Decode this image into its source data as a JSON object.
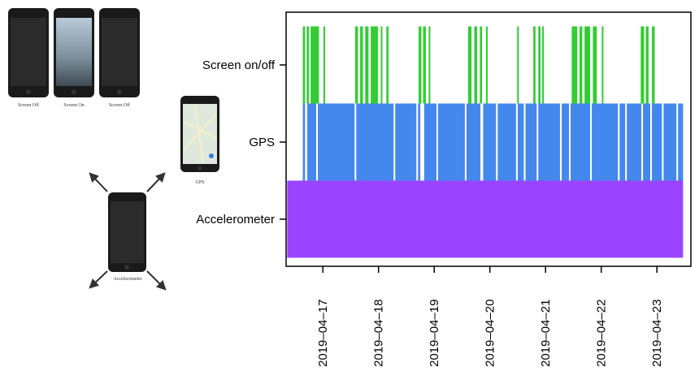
{
  "illustration": {
    "screen_captions": [
      "Screen Off",
      "Screen On",
      "Screen Off"
    ],
    "gps_caption": "GPS",
    "accelerometer_caption": "Accelerometer"
  },
  "chart_data": {
    "type": "timeline",
    "categories": [
      "Screen on/off",
      "GPS",
      "Accelerometer"
    ],
    "series": [
      {
        "color": "#33cc33",
        "intervals": [
          [
            16.64,
            16.68
          ],
          [
            16.71,
            16.75
          ],
          [
            16.78,
            16.93
          ],
          [
            17.01,
            17.04
          ],
          [
            17.58,
            17.63
          ],
          [
            17.67,
            17.72
          ],
          [
            17.76,
            17.82
          ],
          [
            17.86,
            17.99
          ],
          [
            18.04,
            18.07
          ],
          [
            18.14,
            18.18
          ],
          [
            18.72,
            18.77
          ],
          [
            18.8,
            18.85
          ],
          [
            18.9,
            18.93
          ],
          [
            19.61,
            19.67
          ],
          [
            19.72,
            19.77
          ],
          [
            19.82,
            19.86
          ],
          [
            19.93,
            19.96
          ],
          [
            20.49,
            20.52
          ],
          [
            20.78,
            20.82
          ],
          [
            20.87,
            20.91
          ],
          [
            20.94,
            20.97
          ],
          [
            21.47,
            21.57
          ],
          [
            21.61,
            21.66
          ],
          [
            21.7,
            21.8
          ],
          [
            21.85,
            21.92
          ],
          [
            22.01,
            22.04
          ],
          [
            22.71,
            22.77
          ],
          [
            22.8,
            22.85
          ],
          [
            22.91,
            22.96
          ]
        ]
      },
      {
        "color": "#4488ee",
        "intervals": [
          [
            16.64,
            16.68
          ],
          [
            16.72,
            16.88
          ],
          [
            16.91,
            17.57
          ],
          [
            17.6,
            18.27
          ],
          [
            18.3,
            18.68
          ],
          [
            18.71,
            18.75
          ],
          [
            18.82,
            19.04
          ],
          [
            19.07,
            19.55
          ],
          [
            19.58,
            19.83
          ],
          [
            19.88,
            20.11
          ],
          [
            20.14,
            20.47
          ],
          [
            20.5,
            20.61
          ],
          [
            20.64,
            20.84
          ],
          [
            20.87,
            21.26
          ],
          [
            21.29,
            21.42
          ],
          [
            21.45,
            21.8
          ],
          [
            21.83,
            22.3
          ],
          [
            22.33,
            22.43
          ],
          [
            22.46,
            22.72
          ],
          [
            22.75,
            22.88
          ],
          [
            22.91,
            23.09
          ],
          [
            23.12,
            23.35
          ],
          [
            23.38,
            23.47
          ]
        ]
      },
      {
        "color": "#9a44ff",
        "intervals": [
          [
            16.36,
            23.47
          ]
        ]
      }
    ],
    "xlim": [
      16.34,
      23.61
    ],
    "xticks": [
      {
        "value": 17,
        "label": "2019–04–17"
      },
      {
        "value": 18,
        "label": "2019–04–18"
      },
      {
        "value": 19,
        "label": "2019–04–19"
      },
      {
        "value": 20,
        "label": "2019–04–20"
      },
      {
        "value": 21,
        "label": "2019–04–21"
      },
      {
        "value": 22,
        "label": "2019–04–22"
      },
      {
        "value": 23,
        "label": "2019–04–23"
      }
    ]
  }
}
